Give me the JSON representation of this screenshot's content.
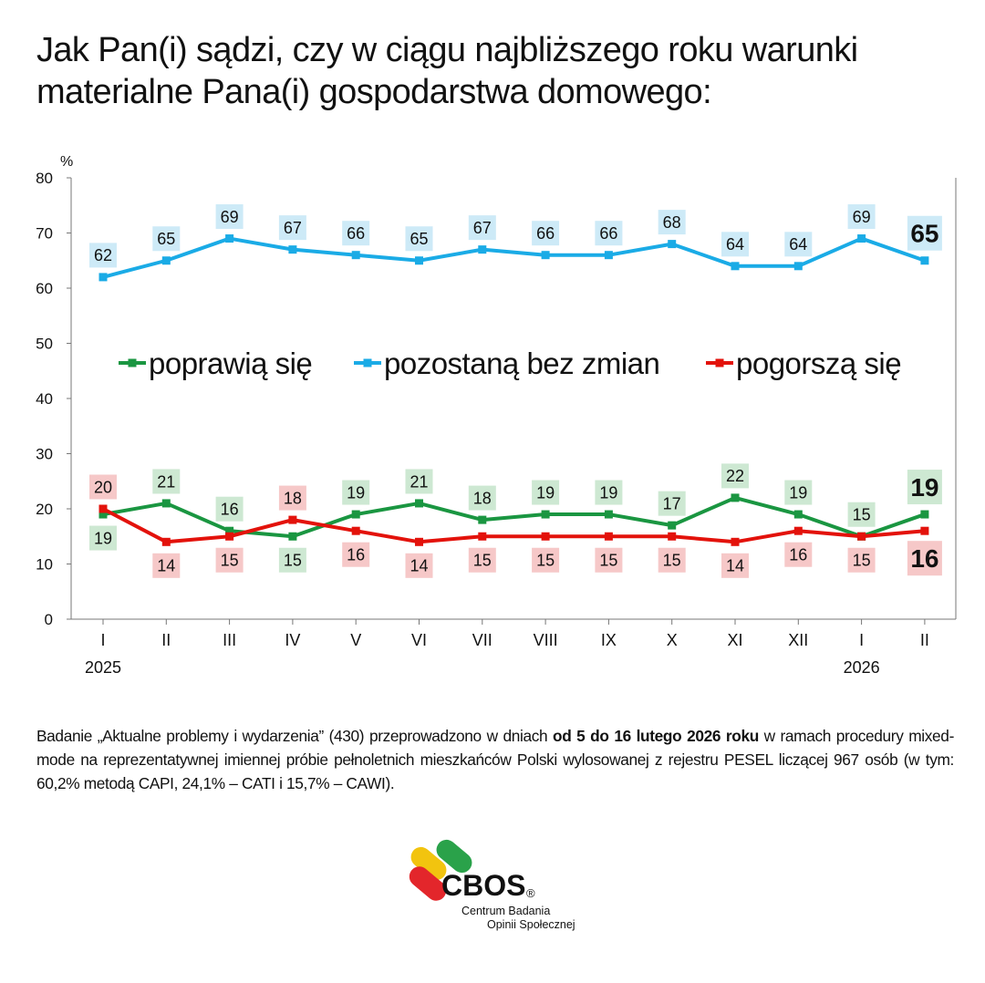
{
  "title": "Jak Pan(i) sądzi, czy w ciągu najbliższego roku warunki materialne Pana(i) gospodarstwa domowego:",
  "note": {
    "part1": "Badanie „Aktualne problemy i wydarzenia” (430) przeprowadzono w dniach ",
    "bold": "od 5 do 16 lutego 2026 roku",
    "part2": " w ramach procedury mixed-mode na reprezentatywnej imiennej próbie pełnoletnich mieszkańców Polski wylosowanej z rejestru PESEL liczącej 967 osób (w tym: 60,2% metodą CAPI, 24,1% – CATI i 15,7% – CAWI)."
  },
  "logo": {
    "name": "CBOS",
    "registered": "®",
    "line1": "Centrum Badania",
    "line2": "Opinii Społecznej"
  },
  "chart_data": {
    "type": "line",
    "ylabel": "%",
    "ylim": [
      0,
      80
    ],
    "yticks": [
      0,
      10,
      20,
      30,
      40,
      50,
      60,
      70,
      80
    ],
    "categories": [
      "I",
      "II",
      "III",
      "IV",
      "V",
      "VI",
      "VII",
      "VIII",
      "IX",
      "X",
      "XI",
      "XII",
      "I",
      "II"
    ],
    "year_labels": [
      {
        "index": 0,
        "text": "2025"
      },
      {
        "index": 12,
        "text": "2026"
      }
    ],
    "legend_position": "middle",
    "series": [
      {
        "name": "poprawią się",
        "color": "#1a9641",
        "label_bg": "#cde8d2",
        "values": [
          19,
          21,
          16,
          15,
          19,
          21,
          18,
          19,
          19,
          17,
          22,
          19,
          15,
          19
        ],
        "label_pos": [
          "below",
          "above",
          "above",
          "below",
          "above",
          "above",
          "above",
          "above",
          "above",
          "above",
          "above",
          "above",
          "above",
          "above"
        ]
      },
      {
        "name": "pozostaną bez zmian",
        "color": "#1aabe6",
        "label_bg": "#cdeaf7",
        "values": [
          62,
          65,
          69,
          67,
          66,
          65,
          67,
          66,
          66,
          68,
          64,
          64,
          69,
          65
        ],
        "label_pos": [
          "above",
          "above",
          "above",
          "above",
          "above",
          "above",
          "above",
          "above",
          "above",
          "above",
          "above",
          "above",
          "above",
          "above"
        ]
      },
      {
        "name": "pogorszą się",
        "color": "#e3120b",
        "label_bg": "#f6c8c8",
        "values": [
          20,
          14,
          15,
          18,
          16,
          14,
          15,
          15,
          15,
          15,
          14,
          16,
          15,
          16
        ],
        "label_pos": [
          "above",
          "below",
          "below",
          "above",
          "below",
          "below",
          "below",
          "below",
          "below",
          "below",
          "below",
          "below",
          "below",
          "below"
        ]
      }
    ]
  }
}
